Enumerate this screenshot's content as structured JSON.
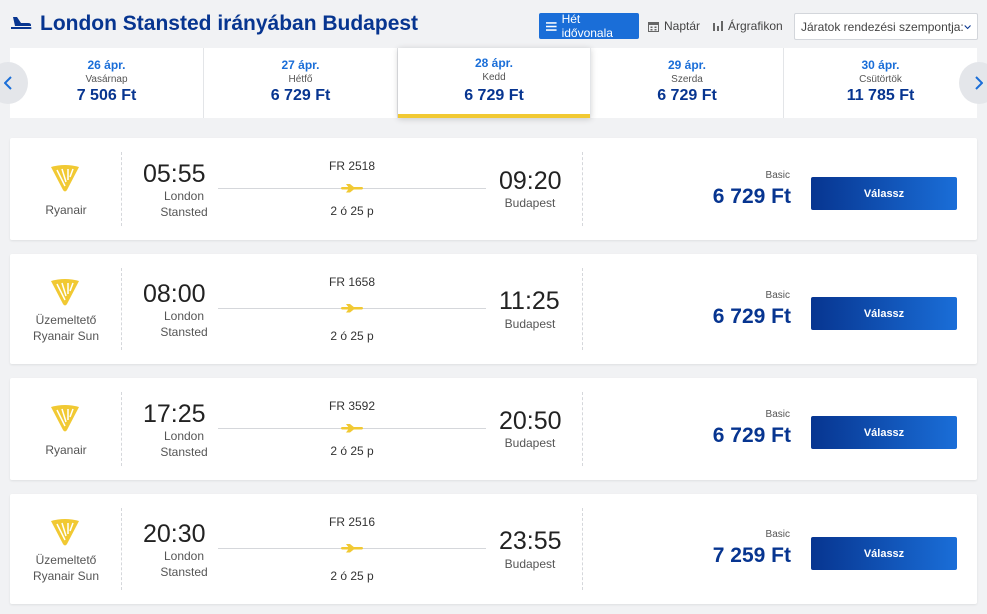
{
  "header": {
    "title": "London Stansted irányában Budapest",
    "views": {
      "week": "Hét idővonala",
      "calendar": "Naptár",
      "graph": "Árgrafikon"
    },
    "sort_label": "Járatok rendezési szempontja:"
  },
  "dates": [
    {
      "date": "26 ápr.",
      "weekday": "Vasárnap",
      "price": "7 506 Ft"
    },
    {
      "date": "27 ápr.",
      "weekday": "Hétfő",
      "price": "6 729 Ft"
    },
    {
      "date": "28 ápr.",
      "weekday": "Kedd",
      "price": "6 729 Ft"
    },
    {
      "date": "29 ápr.",
      "weekday": "Szerda",
      "price": "6 729 Ft"
    },
    {
      "date": "30 ápr.",
      "weekday": "Csütörtök",
      "price": "11 785 Ft"
    }
  ],
  "flights": [
    {
      "operator": [
        "Ryanair"
      ],
      "dep_time": "05:55",
      "dep_place": [
        "London",
        "Stansted"
      ],
      "flight_no": "FR 2518",
      "duration": "2 ó 25 p",
      "arr_time": "09:20",
      "arr_place": "Budapest",
      "fare": "Basic",
      "price": "6 729 Ft",
      "button": "Válassz"
    },
    {
      "operator": [
        "Üzemeltető",
        "Ryanair Sun"
      ],
      "dep_time": "08:00",
      "dep_place": [
        "London",
        "Stansted"
      ],
      "flight_no": "FR 1658",
      "duration": "2 ó 25 p",
      "arr_time": "11:25",
      "arr_place": "Budapest",
      "fare": "Basic",
      "price": "6 729 Ft",
      "button": "Válassz"
    },
    {
      "operator": [
        "Ryanair"
      ],
      "dep_time": "17:25",
      "dep_place": [
        "London",
        "Stansted"
      ],
      "flight_no": "FR 3592",
      "duration": "2 ó 25 p",
      "arr_time": "20:50",
      "arr_place": "Budapest",
      "fare": "Basic",
      "price": "6 729 Ft",
      "button": "Válassz"
    },
    {
      "operator": [
        "Üzemeltető",
        "Ryanair Sun"
      ],
      "dep_time": "20:30",
      "dep_place": [
        "London",
        "Stansted"
      ],
      "flight_no": "FR 2516",
      "duration": "2 ó 25 p",
      "arr_time": "23:55",
      "arr_place": "Budapest",
      "fare": "Basic",
      "price": "7 259 Ft",
      "button": "Válassz"
    }
  ],
  "colors": {
    "primary": "#073590",
    "accent": "#1a6ed8",
    "highlight": "#f1c933"
  },
  "icons": {
    "header": "plane-icon",
    "airline": "ryanair-harp-logo",
    "flight": "plane-icon"
  }
}
